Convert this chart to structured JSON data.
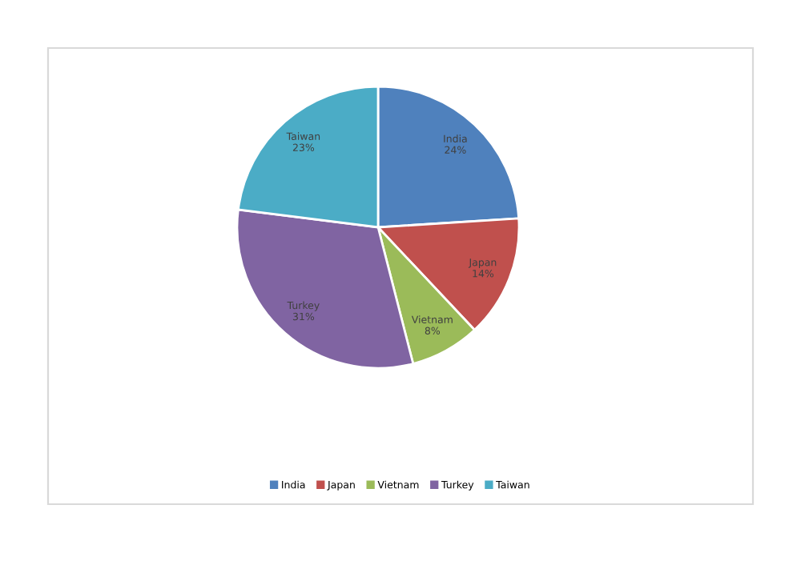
{
  "chart_data": {
    "type": "pie",
    "categories": [
      "India",
      "Japan",
      "Vietnam",
      "Turkey",
      "Taiwan"
    ],
    "values": [
      24,
      14,
      8,
      31,
      23
    ],
    "value_labels": [
      "24%",
      "14%",
      "8%",
      "31%",
      "23%"
    ],
    "colors": [
      "#4f81bd",
      "#c0504d",
      "#9bbb59",
      "#8064a2",
      "#4bacc6"
    ],
    "legend": "bottom"
  }
}
